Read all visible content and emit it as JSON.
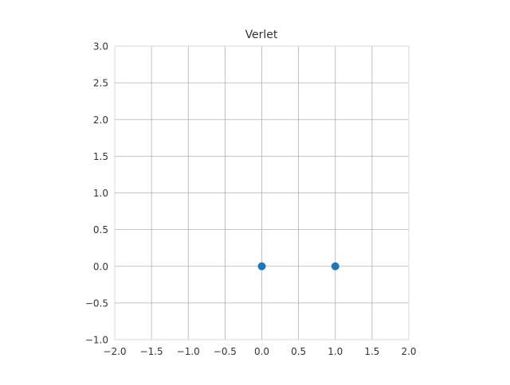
{
  "chart_data": {
    "type": "scatter",
    "title": "Verlet",
    "xlabel": "",
    "ylabel": "",
    "xlim": [
      -2.0,
      2.0
    ],
    "ylim": [
      -1.0,
      3.0
    ],
    "grid": true,
    "x_ticks": [
      -2.0,
      -1.5,
      -1.0,
      -0.5,
      0.0,
      0.5,
      1.0,
      1.5,
      2.0
    ],
    "y_ticks": [
      -1.0,
      -0.5,
      0.0,
      0.5,
      1.0,
      1.5,
      2.0,
      2.5,
      3.0
    ],
    "x_tick_labels": [
      "−2.0",
      "−1.5",
      "−1.0",
      "−0.5",
      "0.0",
      "0.5",
      "1.0",
      "1.5",
      "2.0"
    ],
    "y_tick_labels": [
      "−1.0",
      "−0.5",
      "0.0",
      "0.5",
      "1.0",
      "1.5",
      "2.0",
      "2.5",
      "3.0"
    ],
    "series": [
      {
        "color": "#1f77b4",
        "points": [
          {
            "x": 0.0,
            "y": 0.0
          },
          {
            "x": 1.0,
            "y": 0.0
          }
        ]
      }
    ]
  }
}
